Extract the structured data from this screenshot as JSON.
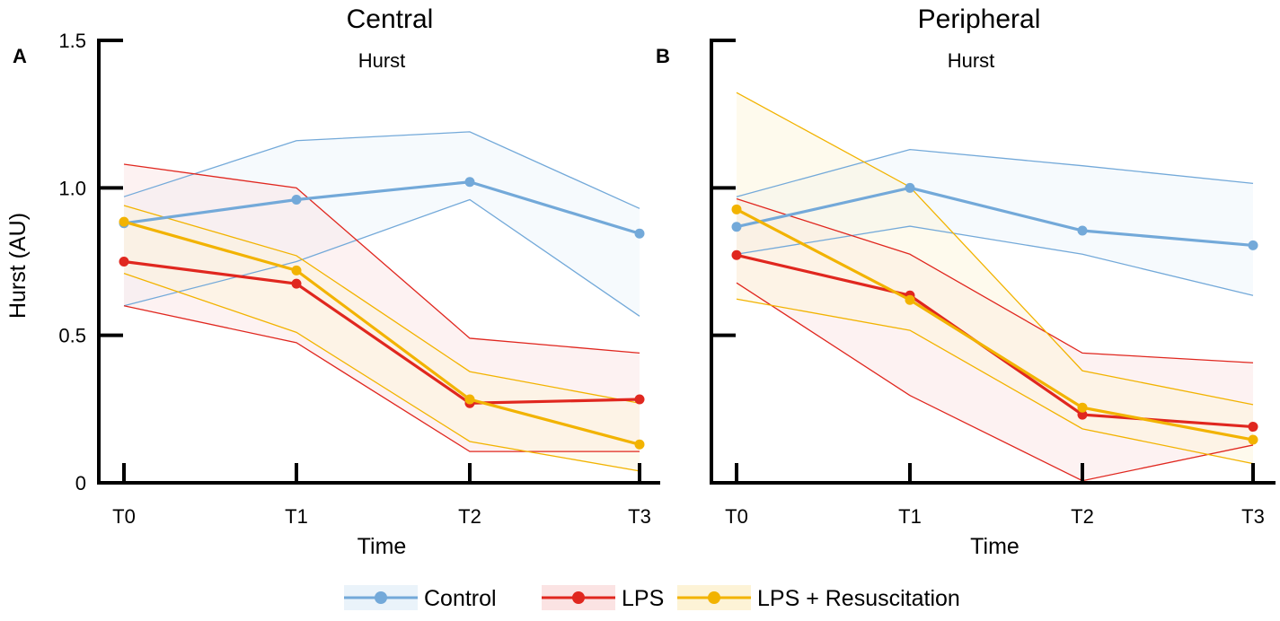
{
  "legend": [
    {
      "name": "Control",
      "color": "#73a9d9",
      "band": "#eaf3fa"
    },
    {
      "name": "LPS",
      "color": "#e0271f",
      "band": "#fbe3e3"
    },
    {
      "name": "LPS + Resuscitation",
      "color": "#f2b300",
      "band": "#fdf3d6"
    }
  ],
  "chart_data": [
    {
      "type": "line",
      "panel_label": "A",
      "title": "Central",
      "subtitle": "Hurst",
      "xlabel": "Time",
      "ylabel": "Hurst (AU)",
      "categories": [
        "T0",
        "T1",
        "T2",
        "T3"
      ],
      "ylim": [
        0,
        1.5
      ],
      "yticks": [
        "0",
        "0.5",
        "1.0",
        "1.5"
      ],
      "ytick_values": [
        0,
        0.5,
        1.0,
        1.5
      ],
      "grid": false,
      "legend_placement": "bottom",
      "series": [
        {
          "name": "Control",
          "mean": [
            0.88,
            0.96,
            1.02,
            0.845
          ],
          "upper": [
            0.97,
            1.16,
            1.19,
            0.93
          ],
          "lower": [
            0.6,
            0.75,
            0.96,
            0.565
          ]
        },
        {
          "name": "LPS",
          "mean": [
            0.75,
            0.675,
            0.27,
            0.283
          ],
          "upper": [
            1.08,
            1.0,
            0.49,
            0.44
          ],
          "lower": [
            0.6,
            0.475,
            0.106,
            0.106
          ]
        },
        {
          "name": "LPS + Resuscitation",
          "mean": [
            0.885,
            0.72,
            0.283,
            0.13
          ],
          "upper": [
            0.94,
            0.77,
            0.377,
            0.27
          ],
          "lower": [
            0.71,
            0.51,
            0.14,
            0.04
          ]
        }
      ]
    },
    {
      "type": "line",
      "panel_label": "B",
      "title": "Peripheral",
      "subtitle": "Hurst",
      "xlabel": "Time",
      "ylabel": "",
      "categories": [
        "T0",
        "T1",
        "T2",
        "T3"
      ],
      "ylim": [
        0,
        1.5
      ],
      "yticks": [],
      "ytick_values": [
        0,
        0.5,
        1.0,
        1.5
      ],
      "grid": false,
      "legend_placement": "bottom",
      "series": [
        {
          "name": "Control",
          "mean": [
            0.868,
            1.0,
            0.855,
            0.805
          ],
          "upper": [
            0.97,
            1.13,
            1.075,
            1.015
          ],
          "lower": [
            0.775,
            0.87,
            0.775,
            0.635
          ]
        },
        {
          "name": "LPS",
          "mean": [
            0.772,
            0.635,
            0.231,
            0.19
          ],
          "upper": [
            0.963,
            0.775,
            0.44,
            0.407
          ],
          "lower": [
            0.678,
            0.296,
            0.007,
            0.128
          ]
        },
        {
          "name": "LPS + Resuscitation",
          "mean": [
            0.927,
            0.62,
            0.255,
            0.146
          ],
          "upper": [
            1.323,
            1.003,
            0.38,
            0.265
          ],
          "lower": [
            0.623,
            0.517,
            0.183,
            0.065
          ]
        }
      ]
    }
  ]
}
